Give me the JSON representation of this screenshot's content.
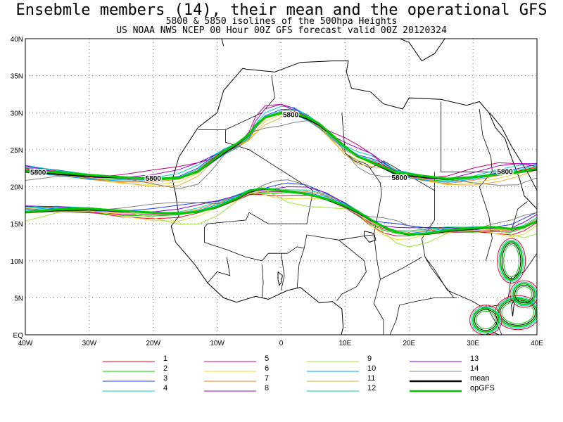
{
  "title": "Ensebmle members (14), their mean and the operational GFS",
  "subtitle1": "5800 & 5850 isolines of the 500hpa Heights",
  "subtitle2": "US NOAA NWS NCEP 00 Hour 00Z GFS forecast valid 00Z 20120324",
  "axes": {
    "lat_labels": [
      "EQ",
      "5N",
      "10N",
      "15N",
      "20N",
      "25N",
      "30N",
      "35N",
      "40N"
    ],
    "lon_labels": [
      "40W",
      "30W",
      "20W",
      "10W",
      "0",
      "10E",
      "20E",
      "30E",
      "40E"
    ],
    "lon_range": [
      -40,
      40
    ],
    "lat_range": [
      0,
      40
    ],
    "grid": "dotted"
  },
  "contour_labels": [
    {
      "text": "5800",
      "lon": -38,
      "lat": 22.0
    },
    {
      "text": "5800",
      "lon": -20,
      "lat": 21.2
    },
    {
      "text": "5800",
      "lon": 1.5,
      "lat": 29.8
    },
    {
      "text": "5800",
      "lon": 18.5,
      "lat": 21.3
    },
    {
      "text": "5800",
      "lon": 35,
      "lat": 22.1
    }
  ],
  "legend": [
    {
      "label": "1",
      "color": "#f0001e"
    },
    {
      "label": "2",
      "color": "#00c800"
    },
    {
      "label": "3",
      "color": "#1e3cff"
    },
    {
      "label": "4",
      "color": "#00d2d2"
    },
    {
      "label": "5",
      "color": "#c80078"
    },
    {
      "label": "6",
      "color": "#e6dc32"
    },
    {
      "label": "7",
      "color": "#f08228"
    },
    {
      "label": "8",
      "color": "#a000c8"
    },
    {
      "label": "9",
      "color": "#a0e632"
    },
    {
      "label": "10",
      "color": "#00a0ff"
    },
    {
      "label": "11",
      "color": "#e6af2d"
    },
    {
      "label": "12",
      "color": "#00d28c"
    },
    {
      "label": "13",
      "color": "#8200dc"
    },
    {
      "label": "14",
      "color": "#808080"
    },
    {
      "label": "mean",
      "color": "#000000"
    },
    {
      "label": "opGFS",
      "color": "#00c800"
    }
  ]
}
